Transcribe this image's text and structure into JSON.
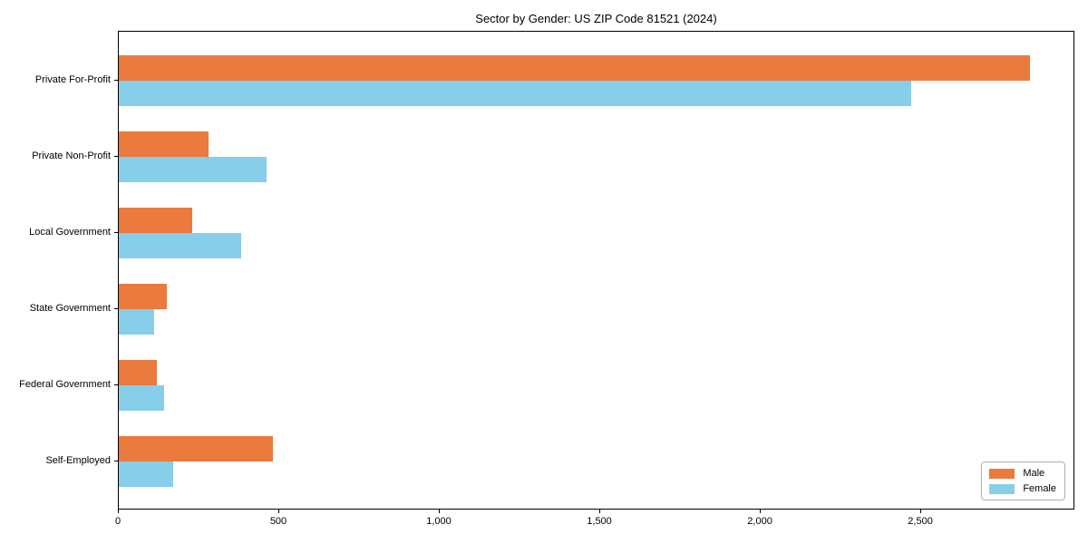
{
  "chart_data": {
    "type": "bar",
    "orientation": "horizontal",
    "title": "Sector by Gender: US ZIP Code 81521 (2024)",
    "categories": [
      "Private For-Profit",
      "Private Non-Profit",
      "Local Government",
      "State Government",
      "Federal Government",
      "Self-Employed"
    ],
    "series": [
      {
        "name": "Male",
        "color": "#ea7a3d",
        "values": [
          2840,
          280,
          230,
          150,
          120,
          480
        ]
      },
      {
        "name": "Female",
        "color": "#87ceeb",
        "values": [
          2470,
          460,
          380,
          110,
          140,
          170
        ]
      }
    ],
    "xlabel": "",
    "ylabel": "",
    "xlim": [
      0,
      2980
    ],
    "xticks": {
      "values": [
        0,
        500,
        1000,
        1500,
        2000,
        2500
      ],
      "labels": [
        "0",
        "500",
        "1,000",
        "1,500",
        "2,000",
        "2,500"
      ]
    },
    "grid": false,
    "frame": "full-box",
    "legend": {
      "position": "lower right",
      "entries": [
        "Male",
        "Female"
      ]
    },
    "colors": {
      "axis": "#000000",
      "text": "#000000",
      "legend_border": "#b0b0b0",
      "background": "#ffffff"
    }
  }
}
